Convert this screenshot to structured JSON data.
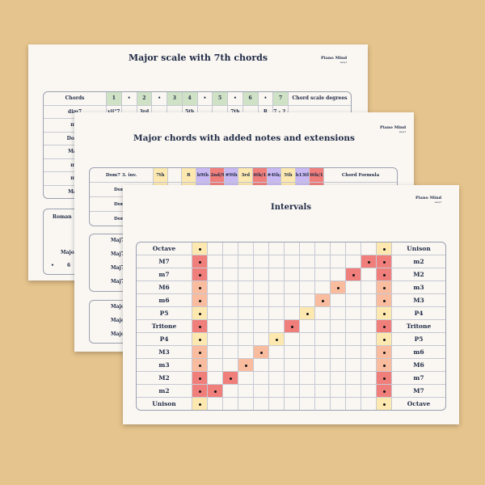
{
  "colors": {
    "background": "#e6c48d",
    "paper": "#faf7f3",
    "yellow": "#fde9b0",
    "red": "#f07f7c",
    "orange": "#f9bc9f",
    "green": "#cfe2c5",
    "purple": "#c9b9f3"
  },
  "logo": {
    "text": "Piano Mind",
    "sub": "easy.t"
  },
  "sheet1": {
    "title": "Major scale  with 7th chords",
    "header": [
      "Chords",
      "1",
      "•",
      "2",
      "•",
      "3",
      "4",
      "•",
      "5",
      "•",
      "6",
      "•",
      "7",
      "Chord scale degrees"
    ],
    "header_colors": [
      "",
      "g",
      "",
      "g",
      "",
      "g",
      "g",
      "",
      "g",
      "",
      "g",
      "",
      "g",
      ""
    ],
    "rows": [
      {
        "label": "dim7",
        "cells": [
          "vii°7",
          "",
          "3rd",
          "",
          "",
          "5th",
          "",
          "",
          "7th",
          "",
          "R",
          "7 - 2 - 4 - 6"
        ]
      },
      {
        "label": "m7"
      },
      {
        "label": "Dom7"
      },
      {
        "label": "Maj7"
      },
      {
        "label": "m7"
      },
      {
        "label": "m7"
      },
      {
        "label": "Maj7"
      }
    ],
    "box_labels": [
      "Roman ",
      "Major",
      "•",
      "6"
    ]
  },
  "sheet2": {
    "title": "Major chords with added notes and extensions",
    "header": [
      "Dom7 3. inv.",
      "7th",
      "",
      "R",
      "b9th",
      "2nd/9th",
      "#9th",
      "3rd",
      "4th/11th",
      "#4th/#11th",
      "5th",
      "b13th",
      "6th/13th",
      "Chord Formula"
    ],
    "header_colors": [
      "",
      "y",
      "",
      "y",
      "p",
      "r",
      "p",
      "y",
      "r",
      "p",
      "y",
      "p",
      "r",
      ""
    ],
    "rows": [
      "Dom7",
      "Dom7",
      "Dom7"
    ],
    "rows2": [
      "Maj7",
      "Maj7",
      "Maj7",
      "Maj7"
    ],
    "rows3": [
      "Major",
      "Major",
      "Major"
    ]
  },
  "sheet3": {
    "title": "Intervals",
    "rows": [
      {
        "left": "Octave",
        "right": "Unison",
        "color": "y",
        "step": 12
      },
      {
        "left": "M7",
        "right": "m2",
        "color": "r",
        "step": 11
      },
      {
        "left": "m7",
        "right": "M2",
        "color": "r",
        "step": 10
      },
      {
        "left": "M6",
        "right": "m3",
        "color": "o",
        "step": 9
      },
      {
        "left": "m6",
        "right": "M3",
        "color": "o",
        "step": 8
      },
      {
        "left": "P5",
        "right": "P4",
        "color": "y",
        "step": 7
      },
      {
        "left": "Tritone",
        "right": "Tritone",
        "color": "r",
        "step": 6
      },
      {
        "left": "P4",
        "right": "P5",
        "color": "y",
        "step": 5
      },
      {
        "left": "M3",
        "right": "m6",
        "color": "o",
        "step": 4
      },
      {
        "left": "m3",
        "right": "M6",
        "color": "o",
        "step": 3
      },
      {
        "left": "M2",
        "right": "m7",
        "color": "r",
        "step": 2
      },
      {
        "left": "m2",
        "right": "M7",
        "color": "r",
        "step": 1
      },
      {
        "left": "Unison",
        "right": "Octave",
        "color": "y",
        "step": 0
      }
    ]
  }
}
